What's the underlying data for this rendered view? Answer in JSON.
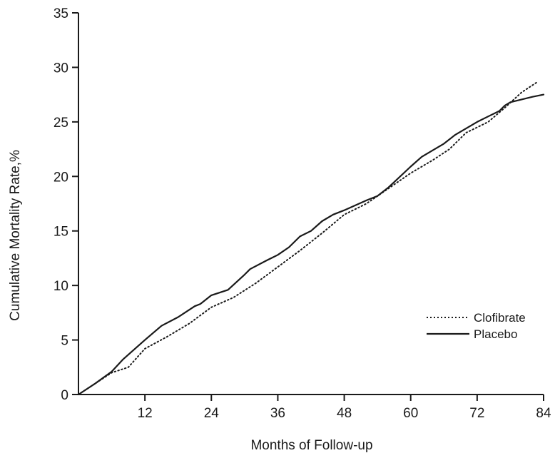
{
  "chart_data": {
    "type": "line",
    "title": "",
    "xlabel": "Months of Follow-up",
    "ylabel": "Cumulative Mortality Rate,%",
    "xlim": [
      0,
      84
    ],
    "ylim": [
      0,
      35
    ],
    "x_ticks": [
      12,
      24,
      36,
      48,
      60,
      72,
      84
    ],
    "y_ticks": [
      0,
      5,
      10,
      15,
      20,
      25,
      30,
      35
    ],
    "grid": false,
    "legend_position": "lower-right",
    "series": [
      {
        "name": "Clofibrate",
        "style": "dotted",
        "color": "#1a1a1a",
        "points": [
          [
            0,
            0
          ],
          [
            3,
            1
          ],
          [
            6,
            2
          ],
          [
            9,
            2.5
          ],
          [
            12,
            4.2
          ],
          [
            16,
            5.3
          ],
          [
            20,
            6.5
          ],
          [
            24,
            8
          ],
          [
            28,
            8.9
          ],
          [
            32,
            10.2
          ],
          [
            36,
            11.7
          ],
          [
            40,
            13.2
          ],
          [
            44,
            14.8
          ],
          [
            48,
            16.5
          ],
          [
            52,
            17.5
          ],
          [
            56,
            18.9
          ],
          [
            60,
            20.3
          ],
          [
            64,
            21.5
          ],
          [
            67,
            22.5
          ],
          [
            70,
            24
          ],
          [
            74,
            25
          ],
          [
            77,
            26.3
          ],
          [
            80,
            27.7
          ],
          [
            83,
            28.7
          ]
        ]
      },
      {
        "name": "Placebo",
        "style": "solid",
        "color": "#1a1a1a",
        "points": [
          [
            0,
            0
          ],
          [
            3,
            1
          ],
          [
            6,
            2.1
          ],
          [
            8,
            3.2
          ],
          [
            10,
            4.1
          ],
          [
            12,
            5
          ],
          [
            15,
            6.3
          ],
          [
            18,
            7.1
          ],
          [
            21,
            8.1
          ],
          [
            22,
            8.3
          ],
          [
            24,
            9.1
          ],
          [
            27,
            9.6
          ],
          [
            30,
            11
          ],
          [
            31,
            11.5
          ],
          [
            34,
            12.3
          ],
          [
            36,
            12.8
          ],
          [
            38,
            13.5
          ],
          [
            40,
            14.5
          ],
          [
            42,
            15
          ],
          [
            44,
            15.9
          ],
          [
            46,
            16.5
          ],
          [
            48,
            16.9
          ],
          [
            52,
            17.8
          ],
          [
            54,
            18.2
          ],
          [
            56,
            19
          ],
          [
            60,
            20.9
          ],
          [
            62,
            21.8
          ],
          [
            64,
            22.4
          ],
          [
            66,
            23
          ],
          [
            68,
            23.8
          ],
          [
            72,
            25
          ],
          [
            74,
            25.5
          ],
          [
            76,
            26
          ],
          [
            77,
            26.5
          ],
          [
            78,
            26.8
          ],
          [
            82,
            27.3
          ],
          [
            84,
            27.5
          ]
        ]
      }
    ]
  }
}
